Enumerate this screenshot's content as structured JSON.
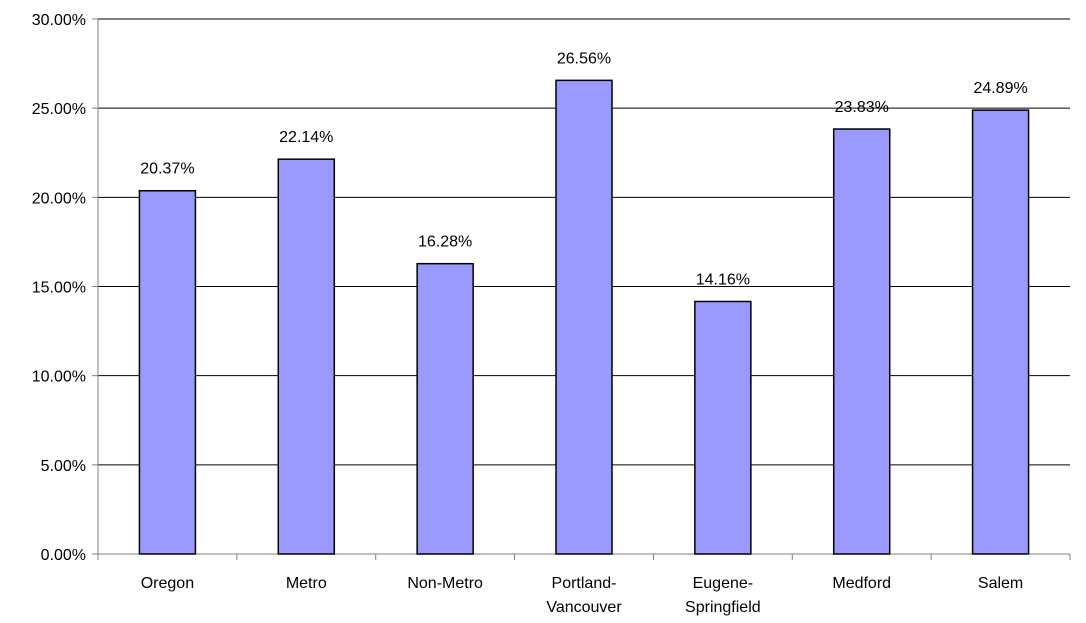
{
  "chart_data": {
    "type": "bar",
    "title": "",
    "xlabel": "",
    "ylabel": "",
    "categories": [
      [
        "Oregon"
      ],
      [
        "Metro"
      ],
      [
        "Non-Metro"
      ],
      [
        "Portland-",
        "Vancouver"
      ],
      [
        "Eugene-",
        "Springfield"
      ],
      [
        "Medford"
      ],
      [
        "Salem"
      ]
    ],
    "values": [
      20.37,
      22.14,
      16.28,
      26.56,
      14.16,
      23.83,
      24.89
    ],
    "data_labels": [
      "20.37%",
      "22.14%",
      "16.28%",
      "26.56%",
      "14.16%",
      "23.83%",
      "24.89%"
    ],
    "ylim": [
      0,
      30
    ],
    "y_ticks": [
      0,
      5,
      10,
      15,
      20,
      25,
      30
    ],
    "y_tick_labels": [
      "0.00%",
      "5.00%",
      "10.00%",
      "15.00%",
      "20.00%",
      "25.00%",
      "30.00%"
    ],
    "grid": true,
    "legend": "none",
    "colors": {
      "bar": "#9999ff",
      "bar_stroke": "#000000",
      "grid": "#000000",
      "axis": "#808080"
    }
  }
}
